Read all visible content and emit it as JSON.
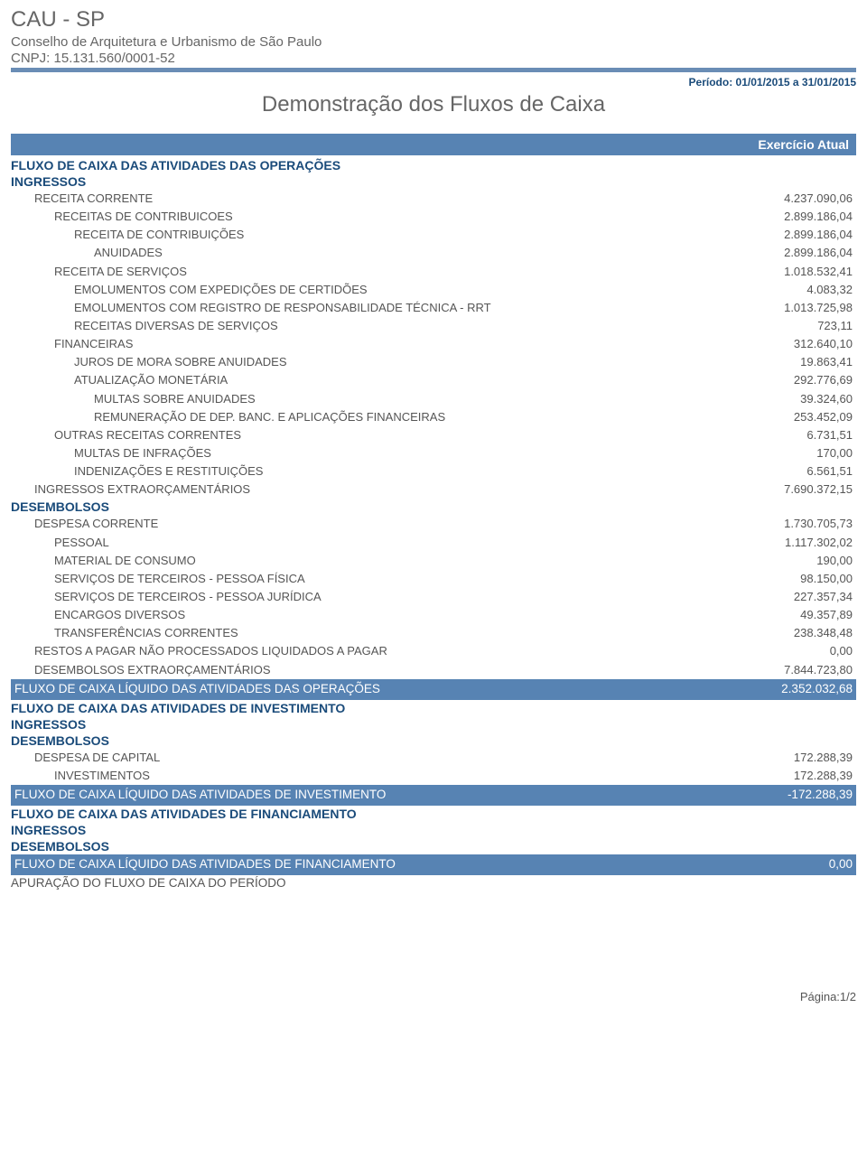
{
  "header": {
    "title": "CAU - SP",
    "subtitle": "Conselho de Arquitetura e Urbanismo de São Paulo",
    "cnpj": "CNPJ: 15.131.560/0001-52",
    "period": "Período: 01/01/2015 a 31/01/2015",
    "doc_title": "Demonstração dos Fluxos de Caixa",
    "column_header": "Exercício Atual"
  },
  "colors": {
    "accent": "#5783b3",
    "text_dark": "#1a4b7a",
    "text_gray": "#555555",
    "header_gray": "#666666",
    "background": "#ffffff"
  },
  "rows": [
    {
      "type": "section",
      "label": "FLUXO DE CAIXA DAS ATIVIDADES DAS OPERAÇÕES"
    },
    {
      "type": "section",
      "label": "INGRESSOS"
    },
    {
      "type": "line",
      "indent": 1,
      "label": "RECEITA CORRENTE",
      "value": "4.237.090,06"
    },
    {
      "type": "line",
      "indent": 2,
      "label": "RECEITAS DE CONTRIBUICOES",
      "value": "2.899.186,04"
    },
    {
      "type": "line",
      "indent": 3,
      "label": "RECEITA DE CONTRIBUIÇÕES",
      "value": "2.899.186,04"
    },
    {
      "type": "line",
      "indent": 4,
      "label": "ANUIDADES",
      "value": "2.899.186,04"
    },
    {
      "type": "line",
      "indent": 2,
      "label": "RECEITA DE SERVIÇOS",
      "value": "1.018.532,41"
    },
    {
      "type": "line",
      "indent": 3,
      "label": "EMOLUMENTOS COM EXPEDIÇÕES DE CERTIDÕES",
      "value": "4.083,32"
    },
    {
      "type": "line",
      "indent": 3,
      "label": "EMOLUMENTOS COM REGISTRO DE RESPONSABILIDADE TÉCNICA - RRT",
      "value": "1.013.725,98"
    },
    {
      "type": "line",
      "indent": 3,
      "label": "RECEITAS DIVERSAS DE SERVIÇOS",
      "value": "723,11"
    },
    {
      "type": "line",
      "indent": 2,
      "label": "FINANCEIRAS",
      "value": "312.640,10"
    },
    {
      "type": "line",
      "indent": 3,
      "label": "JUROS DE MORA SOBRE ANUIDADES",
      "value": "19.863,41"
    },
    {
      "type": "line",
      "indent": 3,
      "label": "ATUALIZAÇÃO MONETÁRIA",
      "value": "292.776,69"
    },
    {
      "type": "line",
      "indent": 4,
      "label": "MULTAS SOBRE ANUIDADES",
      "value": "39.324,60"
    },
    {
      "type": "line",
      "indent": 4,
      "label": "REMUNERAÇÃO DE DEP. BANC. E APLICAÇÕES FINANCEIRAS",
      "value": "253.452,09"
    },
    {
      "type": "line",
      "indent": 2,
      "label": "OUTRAS RECEITAS CORRENTES",
      "value": "6.731,51"
    },
    {
      "type": "line",
      "indent": 3,
      "label": "MULTAS DE INFRAÇÕES",
      "value": "170,00"
    },
    {
      "type": "line",
      "indent": 3,
      "label": "INDENIZAÇÕES E RESTITUIÇÕES",
      "value": "6.561,51"
    },
    {
      "type": "line",
      "indent": 1,
      "label": "INGRESSOS EXTRAORÇAMENTÁRIOS",
      "value": "7.690.372,15"
    },
    {
      "type": "section",
      "label": "DESEMBOLSOS"
    },
    {
      "type": "line",
      "indent": 1,
      "label": "DESPESA CORRENTE",
      "value": "1.730.705,73"
    },
    {
      "type": "line",
      "indent": 2,
      "label": "PESSOAL",
      "value": "1.117.302,02"
    },
    {
      "type": "line",
      "indent": 2,
      "label": "MATERIAL DE CONSUMO",
      "value": "190,00"
    },
    {
      "type": "line",
      "indent": 2,
      "label": "SERVIÇOS DE TERCEIROS - PESSOA FÍSICA",
      "value": "98.150,00"
    },
    {
      "type": "line",
      "indent": 2,
      "label": "SERVIÇOS DE TERCEIROS - PESSOA JURÍDICA",
      "value": "227.357,34"
    },
    {
      "type": "line",
      "indent": 2,
      "label": "ENCARGOS DIVERSOS",
      "value": "49.357,89"
    },
    {
      "type": "line",
      "indent": 2,
      "label": "TRANSFERÊNCIAS CORRENTES",
      "value": "238.348,48"
    },
    {
      "type": "line",
      "indent": 1,
      "label": "RESTOS A PAGAR NÃO PROCESSADOS LIQUIDADOS A PAGAR",
      "value": "0,00"
    },
    {
      "type": "line",
      "indent": 1,
      "label": "DESEMBOLSOS EXTRAORÇAMENTÁRIOS",
      "value": "7.844.723,80"
    },
    {
      "type": "blue",
      "label": "FLUXO DE CAIXA LÍQUIDO DAS ATIVIDADES DAS OPERAÇÕES",
      "value": "2.352.032,68"
    },
    {
      "type": "section",
      "label": "FLUXO DE CAIXA DAS ATIVIDADES DE INVESTIMENTO"
    },
    {
      "type": "section",
      "label": "INGRESSOS"
    },
    {
      "type": "section",
      "label": "DESEMBOLSOS"
    },
    {
      "type": "line",
      "indent": 1,
      "label": "DESPESA DE CAPITAL",
      "value": "172.288,39"
    },
    {
      "type": "line",
      "indent": 2,
      "label": "INVESTIMENTOS",
      "value": "172.288,39"
    },
    {
      "type": "blue",
      "label": "FLUXO DE CAIXA LÍQUIDO DAS ATIVIDADES DE INVESTIMENTO",
      "value": "-172.288,39"
    },
    {
      "type": "section",
      "label": "FLUXO DE CAIXA DAS ATIVIDADES DE FINANCIAMENTO"
    },
    {
      "type": "section",
      "label": "INGRESSOS"
    },
    {
      "type": "section",
      "label": "DESEMBOLSOS"
    },
    {
      "type": "blue",
      "label": "FLUXO DE CAIXA LÍQUIDO DAS ATIVIDADES DE FINANCIAMENTO",
      "value": "0,00"
    },
    {
      "type": "apur",
      "label": "APURAÇÃO DO FLUXO DE CAIXA DO PERÍODO"
    }
  ],
  "footer": {
    "page": "Página:1/2"
  }
}
